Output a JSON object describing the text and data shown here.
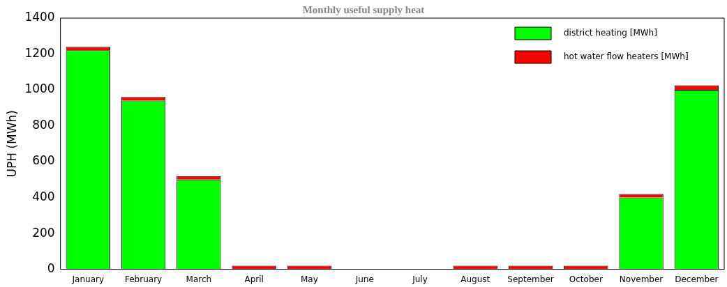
{
  "chart_data": {
    "type": "bar",
    "title": "Monthly useful supply heat",
    "ylabel": "UPH (MWh)",
    "categories": [
      "January",
      "February",
      "March",
      "April",
      "May",
      "June",
      "July",
      "August",
      "September",
      "October",
      "November",
      "December"
    ],
    "stacked": true,
    "ylim": [
      0,
      1400
    ],
    "yticks": [
      0,
      200,
      400,
      600,
      800,
      1000,
      1200,
      1400
    ],
    "grid": false,
    "legend": "top right",
    "series": [
      {
        "name": "district heating [MWh]",
        "color": "#00ff00",
        "values": [
          1220,
          940,
          500,
          0,
          0,
          0,
          0,
          0,
          0,
          0,
          400,
          1000
        ]
      },
      {
        "name": "hot water flow heaters [MWh]",
        "color": "#ff0000",
        "values": [
          20,
          20,
          20,
          20,
          20,
          0,
          0,
          20,
          20,
          20,
          20,
          25
        ]
      }
    ]
  }
}
